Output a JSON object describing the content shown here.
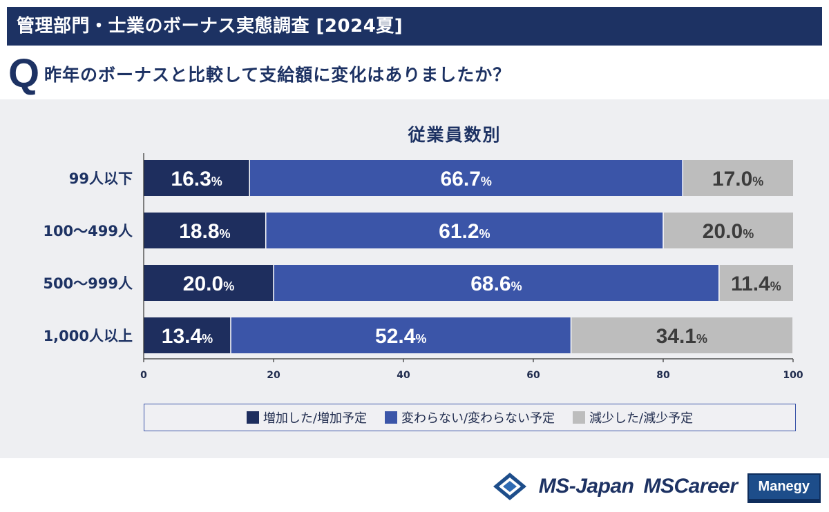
{
  "header": {
    "title": "管理部門・士業のボーナス実態調査 [2024夏]",
    "q_mark": "Q",
    "question": "昨年のボーナスと比較して支給額に変化はありましたか？"
  },
  "chart_data": {
    "type": "bar",
    "orientation": "horizontal",
    "stacked": true,
    "title": "従業員数別",
    "categories": [
      "99人以下",
      "100〜499人",
      "500〜999人",
      "1,000人以上"
    ],
    "series": [
      {
        "name": "増加した/増加予定",
        "values": [
          16.3,
          18.8,
          20.0,
          13.4
        ],
        "color": "#1e2e5e"
      },
      {
        "name": "変わらない/変わらない予定",
        "values": [
          66.7,
          61.2,
          68.6,
          52.4
        ],
        "color": "#3b55a8"
      },
      {
        "name": "減少した/減少予定",
        "values": [
          17.0,
          20.0,
          11.4,
          34.1
        ],
        "color": "#bdbdbd"
      }
    ],
    "label_suffix": "%",
    "xlim": [
      0,
      100
    ],
    "xticks": [
      0,
      20,
      40,
      60,
      80,
      100
    ],
    "legend_position": "bottom",
    "grid": false
  },
  "branding": {
    "logo1": "MS-Japan",
    "logo2": "MSCareer",
    "logo3": "Manegy"
  }
}
